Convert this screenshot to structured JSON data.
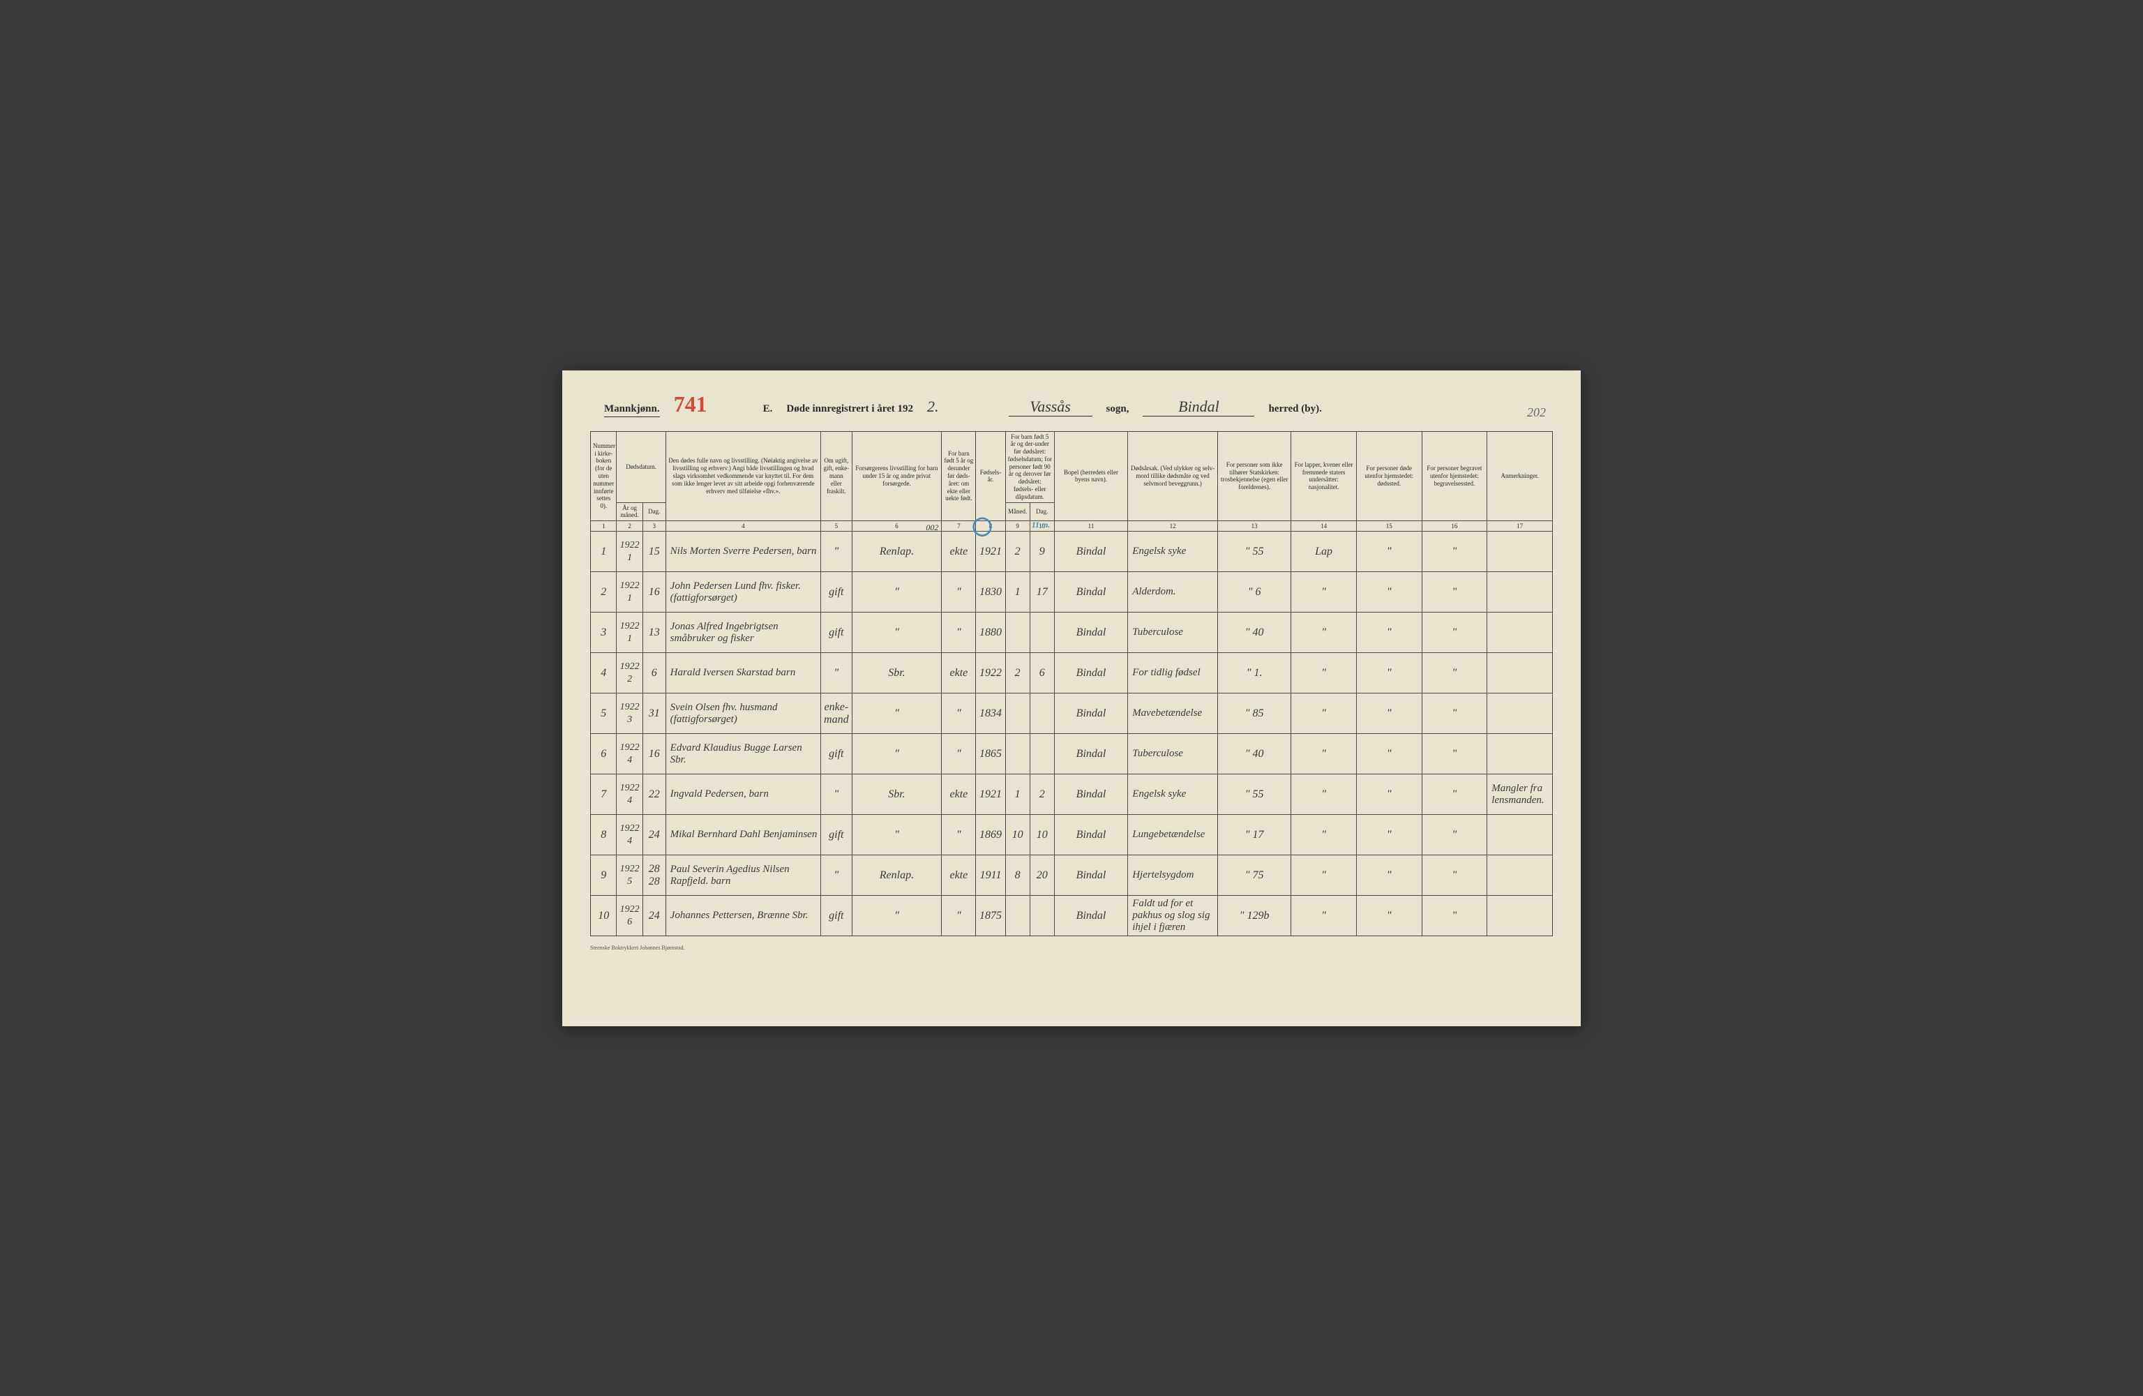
{
  "header": {
    "gender_label": "Mannkjønn.",
    "page_number_red": "741",
    "form_letter": "E.",
    "title_prefix": "Døde innregistrert i året 192",
    "year_suffix": "2.",
    "sogn_value": "Vassås",
    "sogn_label": "sogn,",
    "herred_value": "Bindal",
    "herred_label": "herred (by).",
    "corner_note": "202"
  },
  "columns": {
    "c1": "Nummer i kirke-boken (for de uten nummer innførte settes 0).",
    "c2_top": "Dødsdatum.",
    "c2a": "År og måned.",
    "c2b": "Dag.",
    "c3": "Den dødes fulle navn og livsstilling. (Nøiaktig angivelse av livsstilling og erhverv.) Angi både livsstillingen og hvad slags virksomhet vedkommende var knyttet til. For dem som ikke lenger levet av sitt arbeide opgi forhenværende erhverv med tilføielse «fhv.».",
    "c4": "Om ugift, gift, enke-mann eller fraskilt.",
    "c5": "Forsørgerens livsstilling for barn under 15 år og andre privat forsørgede.",
    "c6_top": "For barn født 5 år og derunder før døds-året: om ekte eller uekte født.",
    "c7": "Fødsels-år.",
    "c8_top": "For barn født 5 år og der-under før dødsåret: fødselsdatum; for personer født 90 år og derover før dødsåret: fødsels- eller dåpsdatum.",
    "c8a": "Måned.",
    "c8b": "Dag.",
    "c9": "Bopel (herredets eller byens navn).",
    "c10": "Dødsårsak. (Ved ulykker og selv-mord tillike dødsmåte og ved selvmord beveggrunn.)",
    "c11": "For personer som ikke tilhører Statskirken: trosbekjennelse (egen eller foreldrenes).",
    "c12": "For lapper, kvener eller fremmede staters undersåtter: nasjonalitet.",
    "c13": "For personer døde utenfor hjemstedet: dødssted.",
    "c14": "For personer begravet utenfor hjemstedet: begravelsessted.",
    "c15": "Anmerkninger."
  },
  "colnums": [
    "1",
    "2",
    "3",
    "4",
    "5",
    "6",
    "7",
    "8",
    "9",
    "10",
    "11",
    "12",
    "13",
    "14",
    "15",
    "16",
    "17"
  ],
  "header_note_002": "002",
  "header_note_11m": "11 m.",
  "rows": [
    {
      "num": "1",
      "year": "1922",
      "month": "1",
      "day": "15",
      "name": "Nils Morten Sverre Pedersen, barn",
      "status": "\"",
      "forsorger": "Renlap.",
      "ekte": "ekte",
      "faar": "1921",
      "fmnd": "2",
      "fdag": "9",
      "bopel": "Bindal",
      "cause": "Engelsk syke",
      "c13": "\"",
      "c13b": "55",
      "c14": "Lap",
      "c15": "\"",
      "c16": "\"",
      "anm": ""
    },
    {
      "num": "2",
      "year": "1922",
      "month": "1",
      "day": "16",
      "name": "John Pedersen Lund fhv. fisker. (fattigforsørget)",
      "status": "gift",
      "forsorger": "\"",
      "ekte": "\"",
      "faar": "1830",
      "fmnd": "1",
      "fdag": "17",
      "bopel": "Bindal",
      "cause": "Alderdom.",
      "c13": "\"",
      "c13b": "6",
      "c14": "\"",
      "c15": "\"",
      "c16": "\"",
      "anm": ""
    },
    {
      "num": "3",
      "year": "1922",
      "month": "1",
      "day": "13",
      "name": "Jonas Alfred Ingebrigtsen småbruker og fisker",
      "status": "gift",
      "forsorger": "\"",
      "ekte": "\"",
      "faar": "1880",
      "fmnd": "",
      "fdag": "",
      "bopel": "Bindal",
      "cause": "Tuberculose",
      "c13": "\"",
      "c13b": "40",
      "c14": "\"",
      "c15": "\"",
      "c16": "\"",
      "anm": ""
    },
    {
      "num": "4",
      "year": "1922",
      "month": "2",
      "day": "6",
      "name": "Harald Iversen Skarstad barn",
      "status": "\"",
      "forsorger": "Sbr.",
      "ekte": "ekte",
      "faar": "1922",
      "fmnd": "2",
      "fdag": "6",
      "bopel": "Bindal",
      "cause": "For tidlig fødsel",
      "c13": "\"",
      "c13b": "1.",
      "c14": "\"",
      "c15": "\"",
      "c16": "\"",
      "anm": ""
    },
    {
      "num": "5",
      "year": "1922",
      "month": "3",
      "day": "31",
      "name": "Svein Olsen fhv. husmand (fattigforsørget)",
      "status": "enke-mand",
      "forsorger": "\"",
      "ekte": "\"",
      "faar": "1834",
      "fmnd": "",
      "fdag": "",
      "bopel": "Bindal",
      "cause": "Mavebetændelse",
      "c13": "\"",
      "c13b": "85",
      "c14": "\"",
      "c15": "\"",
      "c16": "\"",
      "anm": ""
    },
    {
      "num": "6",
      "year": "1922",
      "month": "4",
      "day": "16",
      "name": "Edvard Klaudius Bugge Larsen Sbr.",
      "status": "gift",
      "forsorger": "\"",
      "ekte": "\"",
      "faar": "1865",
      "fmnd": "",
      "fdag": "",
      "bopel": "Bindal",
      "cause": "Tuberculose",
      "c13": "\"",
      "c13b": "40",
      "c14": "\"",
      "c15": "\"",
      "c16": "\"",
      "anm": ""
    },
    {
      "num": "7",
      "year": "1922",
      "month": "4",
      "day": "22",
      "name": "Ingvald Pedersen, barn",
      "status": "\"",
      "forsorger": "Sbr.",
      "ekte": "ekte",
      "faar": "1921",
      "fmnd": "1",
      "fdag": "2",
      "bopel": "Bindal",
      "cause": "Engelsk syke",
      "c13": "\"",
      "c13b": "55",
      "c14": "\"",
      "c15": "\"",
      "c16": "\"",
      "anm": "Mangler fra lensmanden."
    },
    {
      "num": "8",
      "year": "1922",
      "month": "4",
      "day": "24",
      "name": "Mikal Bernhard Dahl Benjaminsen",
      "status": "gift",
      "forsorger": "\"",
      "ekte": "\"",
      "faar": "1869",
      "fmnd": "10",
      "fdag": "10",
      "bopel": "Bindal",
      "cause": "Lungebetændelse",
      "c13": "\"",
      "c13b": "17",
      "c14": "\"",
      "c15": "\"",
      "c16": "\"",
      "anm": ""
    },
    {
      "num": "9",
      "year": "1922",
      "month": "5",
      "day": "28 28",
      "name": "Paul Severin Agedius Nilsen Rapfjeld. barn",
      "status": "\"",
      "forsorger": "Renlap.",
      "ekte": "ekte",
      "faar": "1911",
      "fmnd": "8",
      "fdag": "20",
      "bopel": "Bindal",
      "cause": "Hjertelsygdom",
      "c13": "\"",
      "c13b": "75",
      "c14": "\"",
      "c15": "\"",
      "c16": "\"",
      "anm": ""
    },
    {
      "num": "10",
      "year": "1922",
      "month": "6",
      "day": "24",
      "name": "Johannes Pettersen, Brænne Sbr.",
      "status": "gift",
      "forsorger": "\"",
      "ekte": "\"",
      "faar": "1875",
      "fmnd": "",
      "fdag": "",
      "bopel": "Bindal",
      "cause": "Faldt ud for et pakhus og slog sig ihjel i fjæren",
      "c13": "\"",
      "c13b": "129b",
      "c14": "\"",
      "c15": "\"",
      "c16": "\"",
      "anm": ""
    }
  ],
  "footer": "Steenske Boktrykkeri Johannes Bjørnstad.",
  "styling": {
    "page_bg": "#e8e4d0",
    "ink": "#2a2a2a",
    "handwriting": "#3a3a3a",
    "red_ink": "#d44a3a",
    "blue_pencil": "#4a8ab8",
    "border": "#4a4a4a",
    "header_font_size": 14,
    "cell_font_size": 9,
    "hand_font_size": 16
  }
}
